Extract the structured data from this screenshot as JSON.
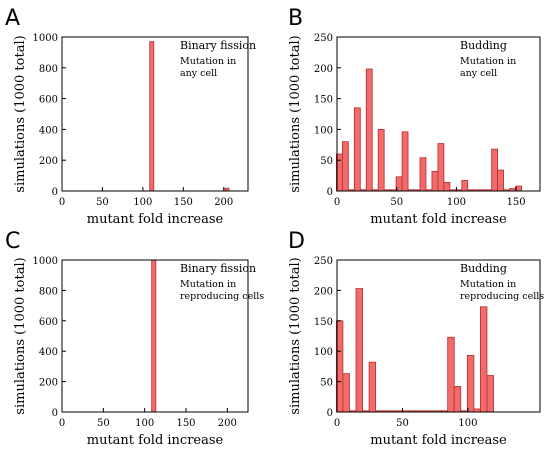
{
  "chart_data": [
    {
      "panel": "A",
      "type": "bar",
      "annotation": [
        "Binary fission",
        "Mutation in",
        "any cell"
      ],
      "xlabel": "mutant fold increase",
      "ylabel": "simulations (1000 total)",
      "xlim": [
        0,
        230
      ],
      "ylim": [
        0,
        1000
      ],
      "xticks": [
        0,
        50,
        100,
        150,
        200
      ],
      "yticks": [
        0,
        200,
        400,
        600,
        800,
        1000
      ],
      "bar_width": 5,
      "x": [
        111,
        204
      ],
      "values": [
        970,
        18
      ]
    },
    {
      "panel": "B",
      "type": "bar",
      "annotation": [
        "Budding",
        "Mutation in",
        "any cell"
      ],
      "xlabel": "mutant fold increase",
      "ylabel": "simulations (1000 total)",
      "xlim": [
        0,
        170
      ],
      "ylim": [
        0,
        250
      ],
      "xticks": [
        0,
        50,
        100,
        150
      ],
      "yticks": [
        0,
        50,
        100,
        150,
        200,
        250
      ],
      "bar_width": 5,
      "x": [
        2,
        7,
        12,
        17,
        22,
        27,
        32,
        37,
        42,
        47,
        52,
        57,
        62,
        67,
        72,
        77,
        82,
        87,
        92,
        97,
        102,
        107,
        112,
        117,
        122,
        127,
        132,
        137,
        142,
        147,
        152
      ],
      "values": [
        60,
        80,
        2,
        135,
        2,
        198,
        2,
        100,
        2,
        2,
        23,
        96,
        2,
        2,
        54,
        2,
        32,
        77,
        14,
        2,
        2,
        17,
        2,
        2,
        2,
        2,
        68,
        34,
        2,
        4,
        8
      ]
    },
    {
      "panel": "C",
      "type": "bar",
      "annotation": [
        "Binary fission",
        "Mutation in",
        "reproducing cells"
      ],
      "xlabel": "mutant fold increase",
      "ylabel": "simulations (1000 total)",
      "xlim": [
        0,
        225
      ],
      "ylim": [
        0,
        1000
      ],
      "xticks": [
        0,
        50,
        100,
        150,
        200
      ],
      "yticks": [
        0,
        200,
        400,
        600,
        800,
        1000
      ],
      "bar_width": 5,
      "x": [
        111
      ],
      "values": [
        1000
      ]
    },
    {
      "panel": "D",
      "type": "bar",
      "annotation": [
        "Budding",
        "Mutation in",
        "reproducing cells"
      ],
      "xlabel": "mutant fold increase",
      "ylabel": "simulations (1000 total)",
      "xlim": [
        0,
        155
      ],
      "ylim": [
        0,
        250
      ],
      "xticks": [
        0,
        50,
        100
      ],
      "yticks": [
        0,
        50,
        100,
        150,
        200,
        250
      ],
      "bar_width": 5,
      "x": [
        2,
        7,
        12,
        17,
        22,
        27,
        32,
        37,
        42,
        47,
        52,
        57,
        62,
        67,
        72,
        77,
        82,
        87,
        92,
        97,
        102,
        107,
        112,
        117
      ],
      "values": [
        150,
        63,
        2,
        203,
        2,
        82,
        2,
        2,
        2,
        2,
        2,
        2,
        2,
        2,
        2,
        2,
        2,
        123,
        42,
        2,
        93,
        5,
        173,
        60
      ]
    }
  ]
}
